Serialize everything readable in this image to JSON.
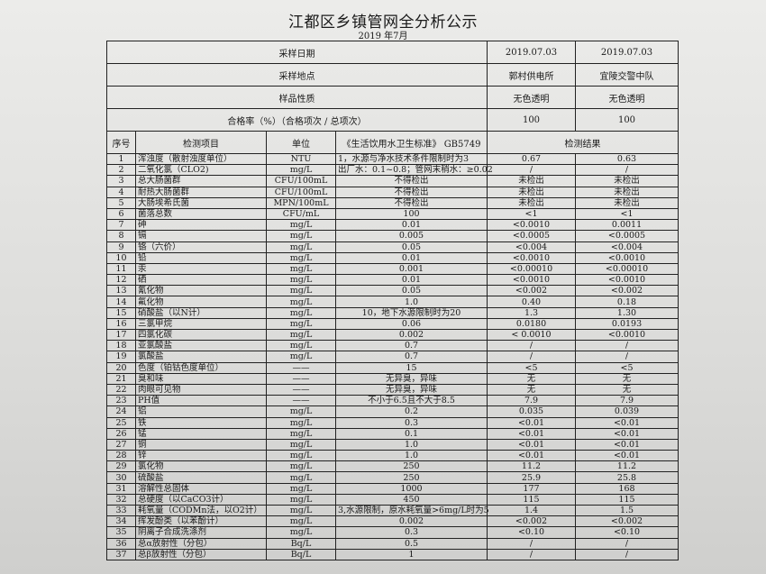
{
  "title": "江都区乡镇管网全分析公示",
  "subtitle": "2019 年7月",
  "meta": [
    {
      "label": "采样日期",
      "v1": "2019.07.03",
      "v2": "2019.07.03"
    },
    {
      "label": "采样地点",
      "v1": "郭村供电所",
      "v2": "宜陵交警中队"
    },
    {
      "label": "样品性质",
      "v1": "无色透明",
      "v2": "无色透明"
    },
    {
      "label": "合格率（%）（合格项次 / 总项次）",
      "v1": "100",
      "v2": "100"
    }
  ],
  "columns": {
    "no": "序号",
    "item": "检测项目",
    "unit": "单位",
    "standard": "《生活饮用水卫生标准》 GB5749",
    "result": "检测结果"
  },
  "rows": [
    [
      "1",
      "浑浊度（散射浊度单位）",
      "NTU",
      "1，水源与净水技术条件限制时为3",
      "0.67",
      "0.63"
    ],
    [
      "2",
      "二氧化氯（CLO2)",
      "mg/L",
      "出厂水：0.1~0.8；管网末稍水：≥0.02",
      "/",
      "/"
    ],
    [
      "3",
      "总大肠菌群",
      "CFU/100mL",
      "不得检出",
      "未检出",
      "未检出"
    ],
    [
      "4",
      "耐热大肠菌群",
      "CFU/100mL",
      "不得检出",
      "未检出",
      "未检出"
    ],
    [
      "5",
      "大肠埃希氏菌",
      "MPN/100mL",
      "不得检出",
      "未检出",
      "未检出"
    ],
    [
      "6",
      "菌落总数",
      "CFU/mL",
      "100",
      "<1",
      "<1"
    ],
    [
      "7",
      "砷",
      "mg/L",
      "0.01",
      "<0.0010",
      "0.0011"
    ],
    [
      "8",
      "镉",
      "mg/L",
      "0.005",
      "<0.0005",
      "<0.0005"
    ],
    [
      "9",
      "铬（六价）",
      "mg/L",
      "0.05",
      "<0.004",
      "<0.004"
    ],
    [
      "10",
      "铅",
      "mg/L",
      "0.01",
      "<0.0010",
      "<0.0010"
    ],
    [
      "11",
      "汞",
      "mg/L",
      "0.001",
      "<0.00010",
      "<0.00010"
    ],
    [
      "12",
      "硒",
      "mg/L",
      "0.01",
      "<0.0010",
      "<0.0010"
    ],
    [
      "13",
      "氰化物",
      "mg/L",
      "0.05",
      "<0.002",
      "<0.002"
    ],
    [
      "14",
      "氟化物",
      "mg/L",
      "1.0",
      "0.40",
      "0.18"
    ],
    [
      "15",
      "硝酸盐（以N计）",
      "mg/L",
      "10，地下水源限制时为20",
      "1.3",
      "1.30"
    ],
    [
      "16",
      "三氯甲烷",
      "mg/L",
      "0.06",
      "0.0180",
      "0.0193"
    ],
    [
      "17",
      "四氯化碳",
      "mg/L",
      "0.002",
      "< 0.0010",
      "<0.0010"
    ],
    [
      "18",
      "亚氯酸盐",
      "mg/L",
      "0.7",
      "/",
      "/"
    ],
    [
      "19",
      "氯酸盐",
      "mg/L",
      "0.7",
      "/",
      "/"
    ],
    [
      "20",
      "色度（铂钴色度单位）",
      "——",
      "15",
      "<5",
      "<5"
    ],
    [
      "21",
      "臭和味",
      "——",
      "无异臭，异味",
      "无",
      "无"
    ],
    [
      "22",
      "肉眼可见物",
      "——",
      "无异臭，异味",
      "无",
      "无"
    ],
    [
      "23",
      "PH值",
      "——",
      "不小于6.5且不大于8.5",
      "7.9",
      "7.9"
    ],
    [
      "24",
      "铝",
      "mg/L",
      "0.2",
      "0.035",
      "0.039"
    ],
    [
      "25",
      "铁",
      "mg/L",
      "0.3",
      "<0.01",
      "<0.01"
    ],
    [
      "26",
      "锰",
      "mg/L",
      "0.1",
      "<0.01",
      "<0.01"
    ],
    [
      "27",
      "铜",
      "mg/L",
      "1.0",
      "<0.01",
      "<0.01"
    ],
    [
      "28",
      "锌",
      "mg/L",
      "1.0",
      "<0.01",
      "<0.01"
    ],
    [
      "29",
      "氯化物",
      "mg/L",
      "250",
      "11.2",
      "11.2"
    ],
    [
      "30",
      "硫酸盐",
      "mg/L",
      "250",
      "25.9",
      "25.8"
    ],
    [
      "31",
      "溶解性总固体",
      "mg/L",
      "1000",
      "177",
      "168"
    ],
    [
      "32",
      "总硬度（以CaCO3计）",
      "mg/L",
      "450",
      "115",
      "115"
    ],
    [
      "33",
      "耗氧量（CODMn法，以O2计）",
      "mg/L",
      "3,水源限制，原水耗氧量>6mg/L时为5",
      "1.4",
      "1.5"
    ],
    [
      "34",
      "挥发酚类（以苯酚计）",
      "mg/L",
      "0.002",
      "<0.002",
      "<0.002"
    ],
    [
      "35",
      "阴离子合成洗涤剂",
      "mg/L",
      "0.3",
      "<0.10",
      "<0.10"
    ],
    [
      "36",
      "总α放射性（分包）",
      "Bq/L",
      "0.5",
      "/",
      "/"
    ],
    [
      "37",
      "总β放射性（分包）",
      "Bq/L",
      "1",
      "/",
      "/"
    ]
  ]
}
